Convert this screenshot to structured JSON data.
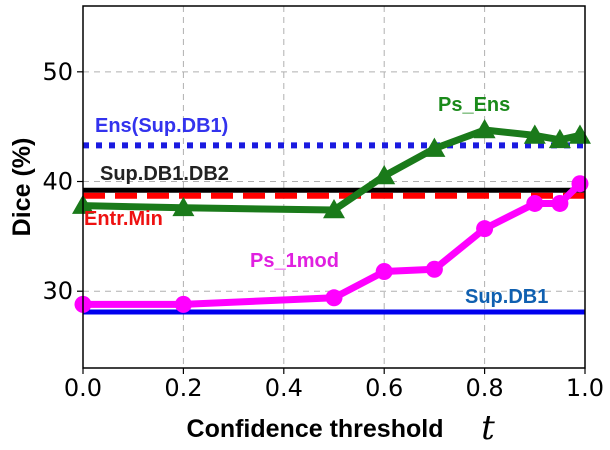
{
  "chart_data": {
    "type": "line",
    "title": "",
    "xlabel": "Confidence threshold",
    "xlabel_symbol": "t",
    "ylabel": "Dice (%)",
    "xlim": [
      0.0,
      1.0
    ],
    "ylim": [
      23,
      56
    ],
    "xticks": [
      "0.0",
      "0.2",
      "0.4",
      "0.6",
      "0.8",
      "1.0"
    ],
    "xtick_values": [
      0.0,
      0.2,
      0.4,
      0.6,
      0.8,
      1.0
    ],
    "yticks": [
      "30",
      "40",
      "50"
    ],
    "ytick_values": [
      30,
      40,
      50
    ],
    "grid": true,
    "series": [
      {
        "name": "Ps_Ens",
        "color": "#1a7a1a",
        "marker": "triangle",
        "x": [
          0.0,
          0.2,
          0.5,
          0.6,
          0.7,
          0.8,
          0.9,
          0.95,
          0.99
        ],
        "y": [
          37.8,
          37.6,
          37.4,
          40.5,
          43.0,
          44.7,
          44.2,
          43.8,
          44.2
        ]
      },
      {
        "name": "Ps_1mod",
        "color": "#ff00ff",
        "marker": "circle",
        "x": [
          0.0,
          0.2,
          0.5,
          0.6,
          0.7,
          0.8,
          0.9,
          0.95,
          0.99
        ],
        "y": [
          28.8,
          28.8,
          29.4,
          31.8,
          32.0,
          35.7,
          38.0,
          38.0,
          39.8
        ]
      }
    ],
    "baselines": [
      {
        "name": "Ens(Sup.DB1)",
        "value": 43.3,
        "color": "#1a1ae0",
        "style": "dotted"
      },
      {
        "name": "Sup.DB1.DB2",
        "value": 39.2,
        "color": "#000000",
        "style": "solid"
      },
      {
        "name": "Entr.Min",
        "value": 38.7,
        "color": "#ff0000",
        "style": "dashed"
      },
      {
        "name": "Sup.DB1",
        "value": 28.1,
        "color": "#0000ee",
        "style": "solid"
      }
    ],
    "annotations": [
      {
        "text": "Ens(Sup.DB1)",
        "color": "#3333ee"
      },
      {
        "text": "Ps_Ens",
        "color": "#1a8a1a"
      },
      {
        "text": "Sup.DB1.DB2",
        "color": "#222222"
      },
      {
        "text": "Entr.Min",
        "color": "#ee1111"
      },
      {
        "text": "Ps_1mod",
        "color": "#e020e0"
      },
      {
        "text": "Sup.DB1",
        "color": "#1060b0"
      }
    ]
  }
}
